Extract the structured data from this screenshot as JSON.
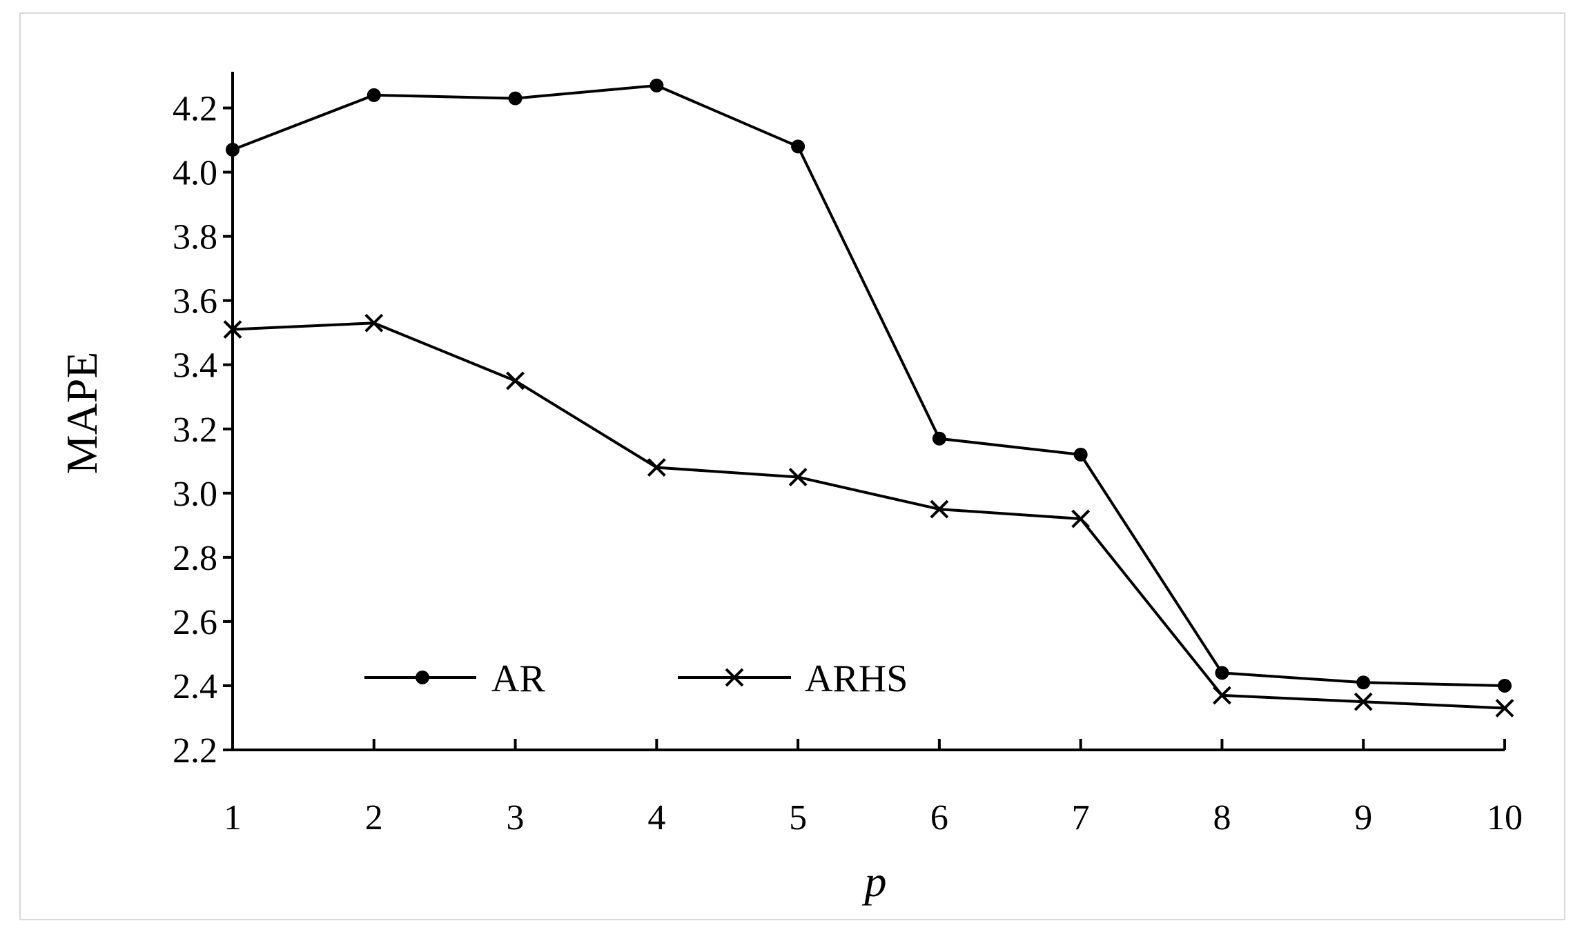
{
  "chart_data": {
    "type": "line",
    "title": "",
    "xlabel": "p",
    "ylabel": "MAPE",
    "x": [
      1,
      2,
      3,
      4,
      5,
      6,
      7,
      8,
      9,
      10
    ],
    "x_tick_labels": [
      "1",
      "2",
      "3",
      "4",
      "5",
      "6",
      "7",
      "8",
      "9",
      "10"
    ],
    "ylim": [
      2.2,
      4.3
    ],
    "y_ticks": [
      2.2,
      2.4,
      2.6,
      2.8,
      3.0,
      3.2,
      3.4,
      3.6,
      3.8,
      4.0,
      4.2
    ],
    "y_tick_labels": [
      "2.2",
      "2.4",
      "2.6",
      "2.8",
      "3.0",
      "3.2",
      "3.4",
      "3.6",
      "3.8",
      "4.0",
      "4.2"
    ],
    "grid": false,
    "legend_position": "bottom-left",
    "series": [
      {
        "name": "AR",
        "marker": "dot",
        "color": "#000000",
        "values": [
          4.07,
          4.24,
          4.23,
          4.27,
          4.08,
          3.17,
          3.12,
          2.44,
          2.41,
          2.4
        ]
      },
      {
        "name": "ARHS",
        "marker": "x",
        "color": "#000000",
        "values": [
          3.51,
          3.53,
          3.35,
          3.08,
          3.05,
          2.95,
          2.92,
          2.37,
          2.35,
          2.33
        ]
      }
    ]
  }
}
